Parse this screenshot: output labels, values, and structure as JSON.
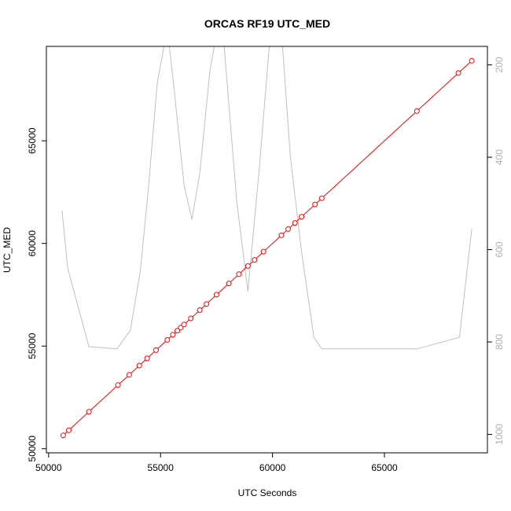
{
  "chart_data": {
    "type": "line",
    "title": "ORCAS RF19 UTC_MED",
    "xlabel": "UTC Seconds",
    "ylabel": "UTC_MED",
    "xlim": [
      49900,
      69600
    ],
    "ylim": [
      49800,
      69600
    ],
    "x_ticks": [
      "50000",
      "55000",
      "60000",
      "65000"
    ],
    "y_ticks": [
      "50000",
      "55000",
      "60000",
      "65000"
    ],
    "y2_ticks": [
      "200",
      "400",
      "600",
      "800",
      "1000"
    ],
    "y2lim": [
      1040,
      160
    ],
    "grid": false,
    "series": [
      {
        "color": "#ff0000",
        "style": "line-with-open-circles",
        "x": [
          50650,
          50900,
          51800,
          53100,
          53600,
          54050,
          54400,
          54800,
          55300,
          55550,
          55750,
          55900,
          56050,
          56350,
          56750,
          57050,
          57500,
          58050,
          58500,
          58900,
          59200,
          59600,
          60400,
          60700,
          61000,
          61300,
          61900,
          62200,
          66450,
          68300,
          68900
        ],
        "y": [
          50650,
          50900,
          51800,
          53100,
          53600,
          54050,
          54400,
          54800,
          55300,
          55550,
          55750,
          55900,
          56050,
          56350,
          56750,
          57050,
          57500,
          58050,
          58500,
          58900,
          59200,
          59600,
          60400,
          60700,
          61000,
          61300,
          61900,
          62200,
          66450,
          68300,
          68900
        ]
      },
      {
        "color": "#c0c0c0",
        "axis": "right",
        "style": "line",
        "x": [
          50600,
          50850,
          51800,
          53050,
          53650,
          54100,
          54450,
          54850,
          55300,
          55600,
          56050,
          56400,
          56750,
          57200,
          57700,
          58400,
          58900,
          59400,
          59850,
          60300,
          60800,
          61300,
          61850,
          62200,
          66450,
          68350,
          68900
        ],
        "y": [
          515,
          640,
          810,
          815,
          775,
          645,
          470,
          240,
          120,
          250,
          460,
          535,
          435,
          215,
          75,
          495,
          690,
          430,
          165,
          60,
          400,
          605,
          790,
          815,
          815,
          790,
          555
        ]
      }
    ]
  }
}
